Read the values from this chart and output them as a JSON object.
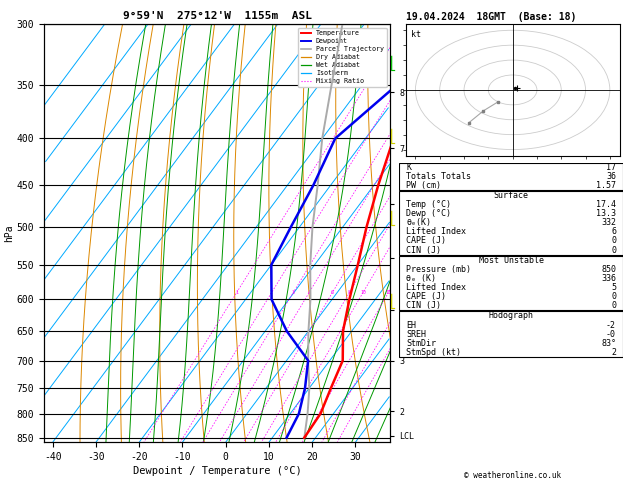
{
  "title_left": "9°59'N  275°12'W  1155m  ASL",
  "title_right": "19.04.2024  18GMT  (Base: 18)",
  "xlabel": "Dewpoint / Temperature (°C)",
  "ylabel_left": "hPa",
  "pressure_levels": [
    300,
    350,
    400,
    450,
    500,
    550,
    600,
    650,
    700,
    750,
    800,
    850
  ],
  "pressure_labels": [
    "300",
    "350",
    "400",
    "450",
    "500",
    "550",
    "600",
    "650",
    "700",
    "750",
    "800",
    "850"
  ],
  "temp_x": [
    17.4,
    17.0,
    15.0,
    13.0,
    8.0,
    4.0,
    0.0,
    -4.5,
    -9.0,
    -13.5,
    -17.0,
    -17.4
  ],
  "temp_p": [
    850,
    800,
    750,
    700,
    650,
    600,
    550,
    500,
    450,
    400,
    350,
    300
  ],
  "dewp_x": [
    13.3,
    12.0,
    9.0,
    5.0,
    -5.0,
    -14.0,
    -20.0,
    -22.0,
    -24.0,
    -27.0,
    -22.0,
    -15.0
  ],
  "dewp_p": [
    850,
    800,
    750,
    700,
    650,
    600,
    550,
    500,
    450,
    400,
    350,
    300
  ],
  "parcel_x": [
    17.4,
    14.0,
    10.0,
    5.0,
    0.0,
    -5.0,
    -11.0,
    -17.0,
    -23.0,
    -30.0,
    -37.0,
    -45.0
  ],
  "parcel_p": [
    850,
    800,
    750,
    700,
    650,
    600,
    550,
    500,
    450,
    400,
    350,
    300
  ],
  "temp_color": "#ff0000",
  "dewp_color": "#0000ee",
  "parcel_color": "#aaaaaa",
  "dry_adiabat_color": "#dd8800",
  "wet_adiabat_color": "#009900",
  "isotherm_color": "#00aaff",
  "mixing_ratio_color": "#ff00ff",
  "km_labels": [
    "8",
    "7",
    "6",
    "5",
    "4",
    "3",
    "2",
    "LCL"
  ],
  "km_pressures": [
    356,
    410,
    472,
    540,
    616,
    700,
    795,
    846
  ],
  "mixing_ratio_vals": [
    1,
    2,
    3,
    4,
    6,
    8,
    10,
    15,
    20,
    25
  ],
  "tmin": -42,
  "tmax": 38,
  "pmin": 300,
  "pmax": 860,
  "info_K": "17",
  "info_TT": "36",
  "info_PW": "1.57",
  "info_sT": "17.4",
  "info_sD": "13.3",
  "info_sTHE": "332",
  "info_sLI": "6",
  "info_sCAPE": "0",
  "info_sCIN": "0",
  "info_muP": "850",
  "info_muTHE": "336",
  "info_muLI": "5",
  "info_muCAPE": "0",
  "info_muCIN": "0",
  "info_EH": "-2",
  "info_SREH": "-0",
  "info_StmDir": "83°",
  "info_StmSpd": "2",
  "copyright": "© weatheronline.co.uk"
}
